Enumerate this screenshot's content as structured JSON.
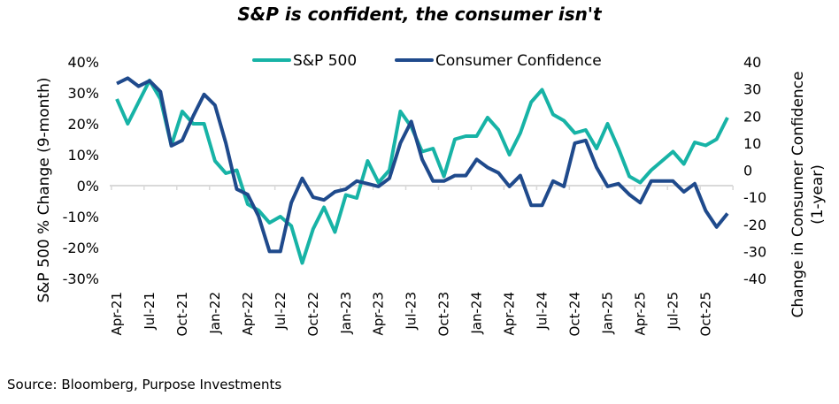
{
  "chart_data": {
    "type": "line",
    "title": "S&P is confident, the consumer isn't",
    "source": "Source: Bloomberg, Purpose Investments",
    "ylabel": "S&P 500 % Change (9-month)",
    "y2label": [
      "Change in Consumer Confidence",
      "(1-year)"
    ],
    "ylim": [
      -30,
      40
    ],
    "y2lim": [
      -40,
      40
    ],
    "yticks": [
      "40%",
      "30%",
      "20%",
      "10%",
      "0%",
      "-10%",
      "-20%",
      "-30%"
    ],
    "yticks_values": [
      40,
      30,
      20,
      10,
      0,
      -10,
      -20,
      -30
    ],
    "y2ticks": [
      "40",
      "30",
      "20",
      "10",
      "0",
      "-10",
      "-20",
      "-30",
      "-40"
    ],
    "y2ticks_values": [
      40,
      30,
      20,
      10,
      0,
      -10,
      -20,
      -30,
      -40
    ],
    "xtick_labels": [
      "Apr-21",
      "Jul-21",
      "Oct-21",
      "Jan-22",
      "Apr-22",
      "Jul-22",
      "Oct-22",
      "Jan-23",
      "Apr-23",
      "Jul-23",
      "Oct-23",
      "Jan-24",
      "Apr-24",
      "Jul-24",
      "Oct-24",
      "Jan-25",
      "Apr-25",
      "Jul-25",
      "Oct-25"
    ],
    "x_start": "Apr-21",
    "x_end": "Dec-25",
    "legend": "top-center",
    "grid": false,
    "colors": {
      "sp500": "#17b3a6",
      "consumer": "#1f4a8c",
      "zero_line": "#d9d9d9"
    },
    "series": [
      {
        "name": "S&P 500",
        "axis": "left",
        "values": [
          28,
          20,
          27,
          34,
          28,
          13,
          24,
          20,
          20,
          8,
          4,
          5,
          -6,
          -8,
          -12,
          -10,
          -13,
          -25,
          -14,
          -7,
          -15,
          -3,
          -4,
          8,
          1,
          5,
          24,
          19,
          11,
          12,
          3,
          15,
          16,
          16,
          22,
          18,
          10,
          17,
          27,
          31,
          23,
          21,
          17,
          18,
          12,
          20,
          12,
          3,
          1,
          5,
          8,
          11,
          7,
          14,
          13,
          15,
          22
        ]
      },
      {
        "name": "Consumer Confidence",
        "axis": "right",
        "values": [
          32,
          34,
          31,
          33,
          29,
          9,
          11,
          20,
          28,
          24,
          10,
          -7,
          -9,
          -17,
          -30,
          -30,
          -12,
          -3,
          -10,
          -11,
          -8,
          -7,
          -4,
          -5,
          -6,
          -3,
          10,
          18,
          4,
          -4,
          -4,
          -2,
          -2,
          4,
          1,
          -1,
          -6,
          -2,
          -13,
          -13,
          -4,
          -6,
          10,
          11,
          1,
          -6,
          -5,
          -9,
          -12,
          -4,
          -4,
          -4,
          -8,
          -5,
          -15,
          -21,
          -16
        ]
      }
    ]
  }
}
